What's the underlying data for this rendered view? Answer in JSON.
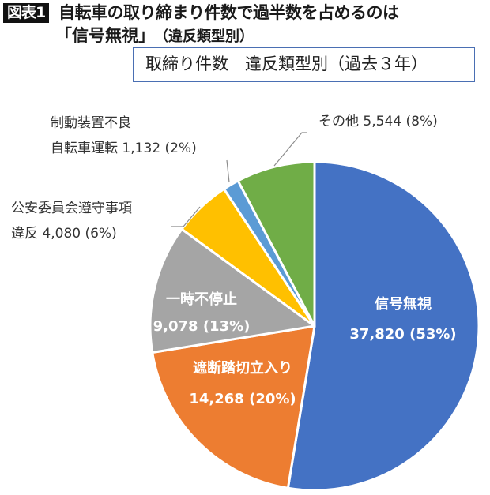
{
  "header": {
    "badge": "図表1",
    "title_line1": "自転車の取り締まり件数で過半数を占めるのは",
    "title_line2": "「信号無視」",
    "title_line2_sub": "（違反類型別）",
    "subtitle": "取締り件数　違反類型別（過去３年）"
  },
  "labels": {
    "shingou_name": "信号無視",
    "shingou_value": "37,820 (53%)",
    "shadan_name": "遮断踏切立入り",
    "shadan_value": "14,268 (20%)",
    "ichiji_name": "一時不停止",
    "ichiji_value": "9,078 (13%)",
    "koan_name": "公安委員会遵守事項",
    "koan_value": "違反 4,080 (6%)",
    "seido_name": "制動装置不良",
    "seido_value": "自転車運転 1,132 (2%)",
    "sonota": "その他 5,544 (8%)"
  },
  "chart_data": {
    "type": "pie",
    "title": "取締り件数　違反類型別（過去３年）",
    "figure_title": "自転車の取り締まり件数で過半数を占めるのは「信号無視」（違反類型別）",
    "start_angle": "12 o'clock, clockwise",
    "categories": [
      "信号無視",
      "遮断踏切立入り",
      "一時不停止",
      "公安委員会遵守事項違反",
      "制動装置不良自転車運転",
      "その他"
    ],
    "values": [
      37820,
      14268,
      9078,
      4080,
      1132,
      5544
    ],
    "percentages": [
      53,
      20,
      13,
      6,
      2,
      8
    ],
    "colors": [
      "#4472C4",
      "#ED7D31",
      "#A5A5A5",
      "#FFC000",
      "#5B9BD5",
      "#70AD47"
    ],
    "legend": "none (data labels)"
  }
}
